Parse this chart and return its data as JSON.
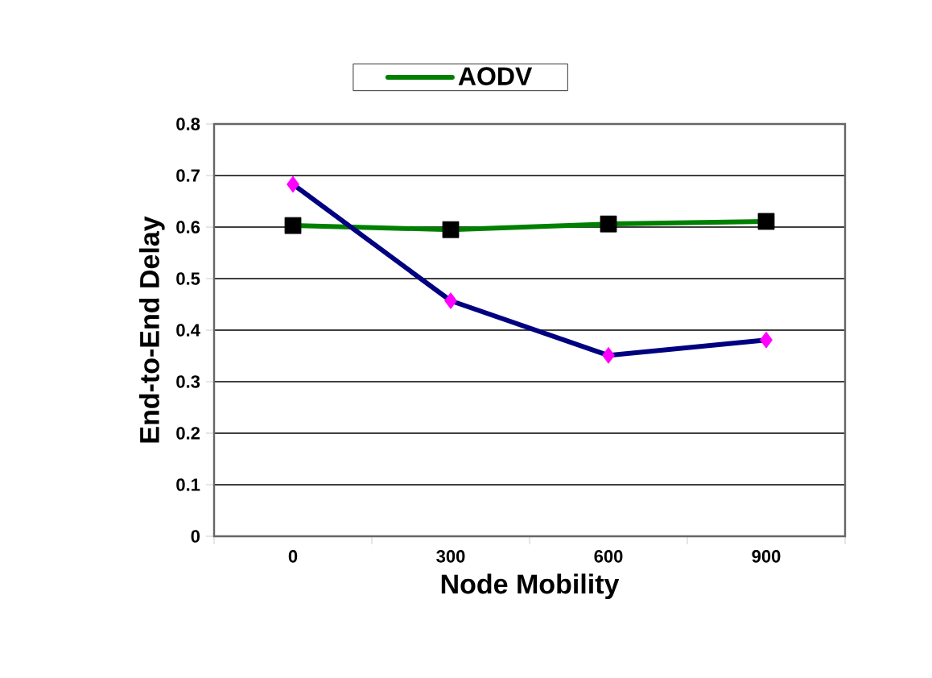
{
  "chart_data": {
    "type": "line",
    "xlabel": "Node Mobility",
    "ylabel": "End-to-End Delay",
    "categories": [
      "0",
      "300",
      "600",
      "900"
    ],
    "series": [
      {
        "name": "AODV",
        "color": "#008000",
        "marker": "square",
        "colors": [
          "#000000",
          "#000000",
          "#000000",
          "#000000"
        ],
        "values": [
          0.603,
          0.595,
          0.606,
          0.611
        ]
      },
      {
        "color": "#000080",
        "marker": "diamond",
        "colors": [
          "#ff00ff",
          "#ff00ff",
          "#ff00ff",
          "#ff00ff"
        ],
        "values": [
          0.683,
          0.457,
          0.351,
          0.381
        ]
      }
    ],
    "ylim": [
      0,
      0.8
    ],
    "yticks": [
      0,
      0.1,
      0.2,
      0.3,
      0.4,
      0.5,
      0.6,
      0.7,
      0.8
    ],
    "grid": "y",
    "legend": "top"
  }
}
